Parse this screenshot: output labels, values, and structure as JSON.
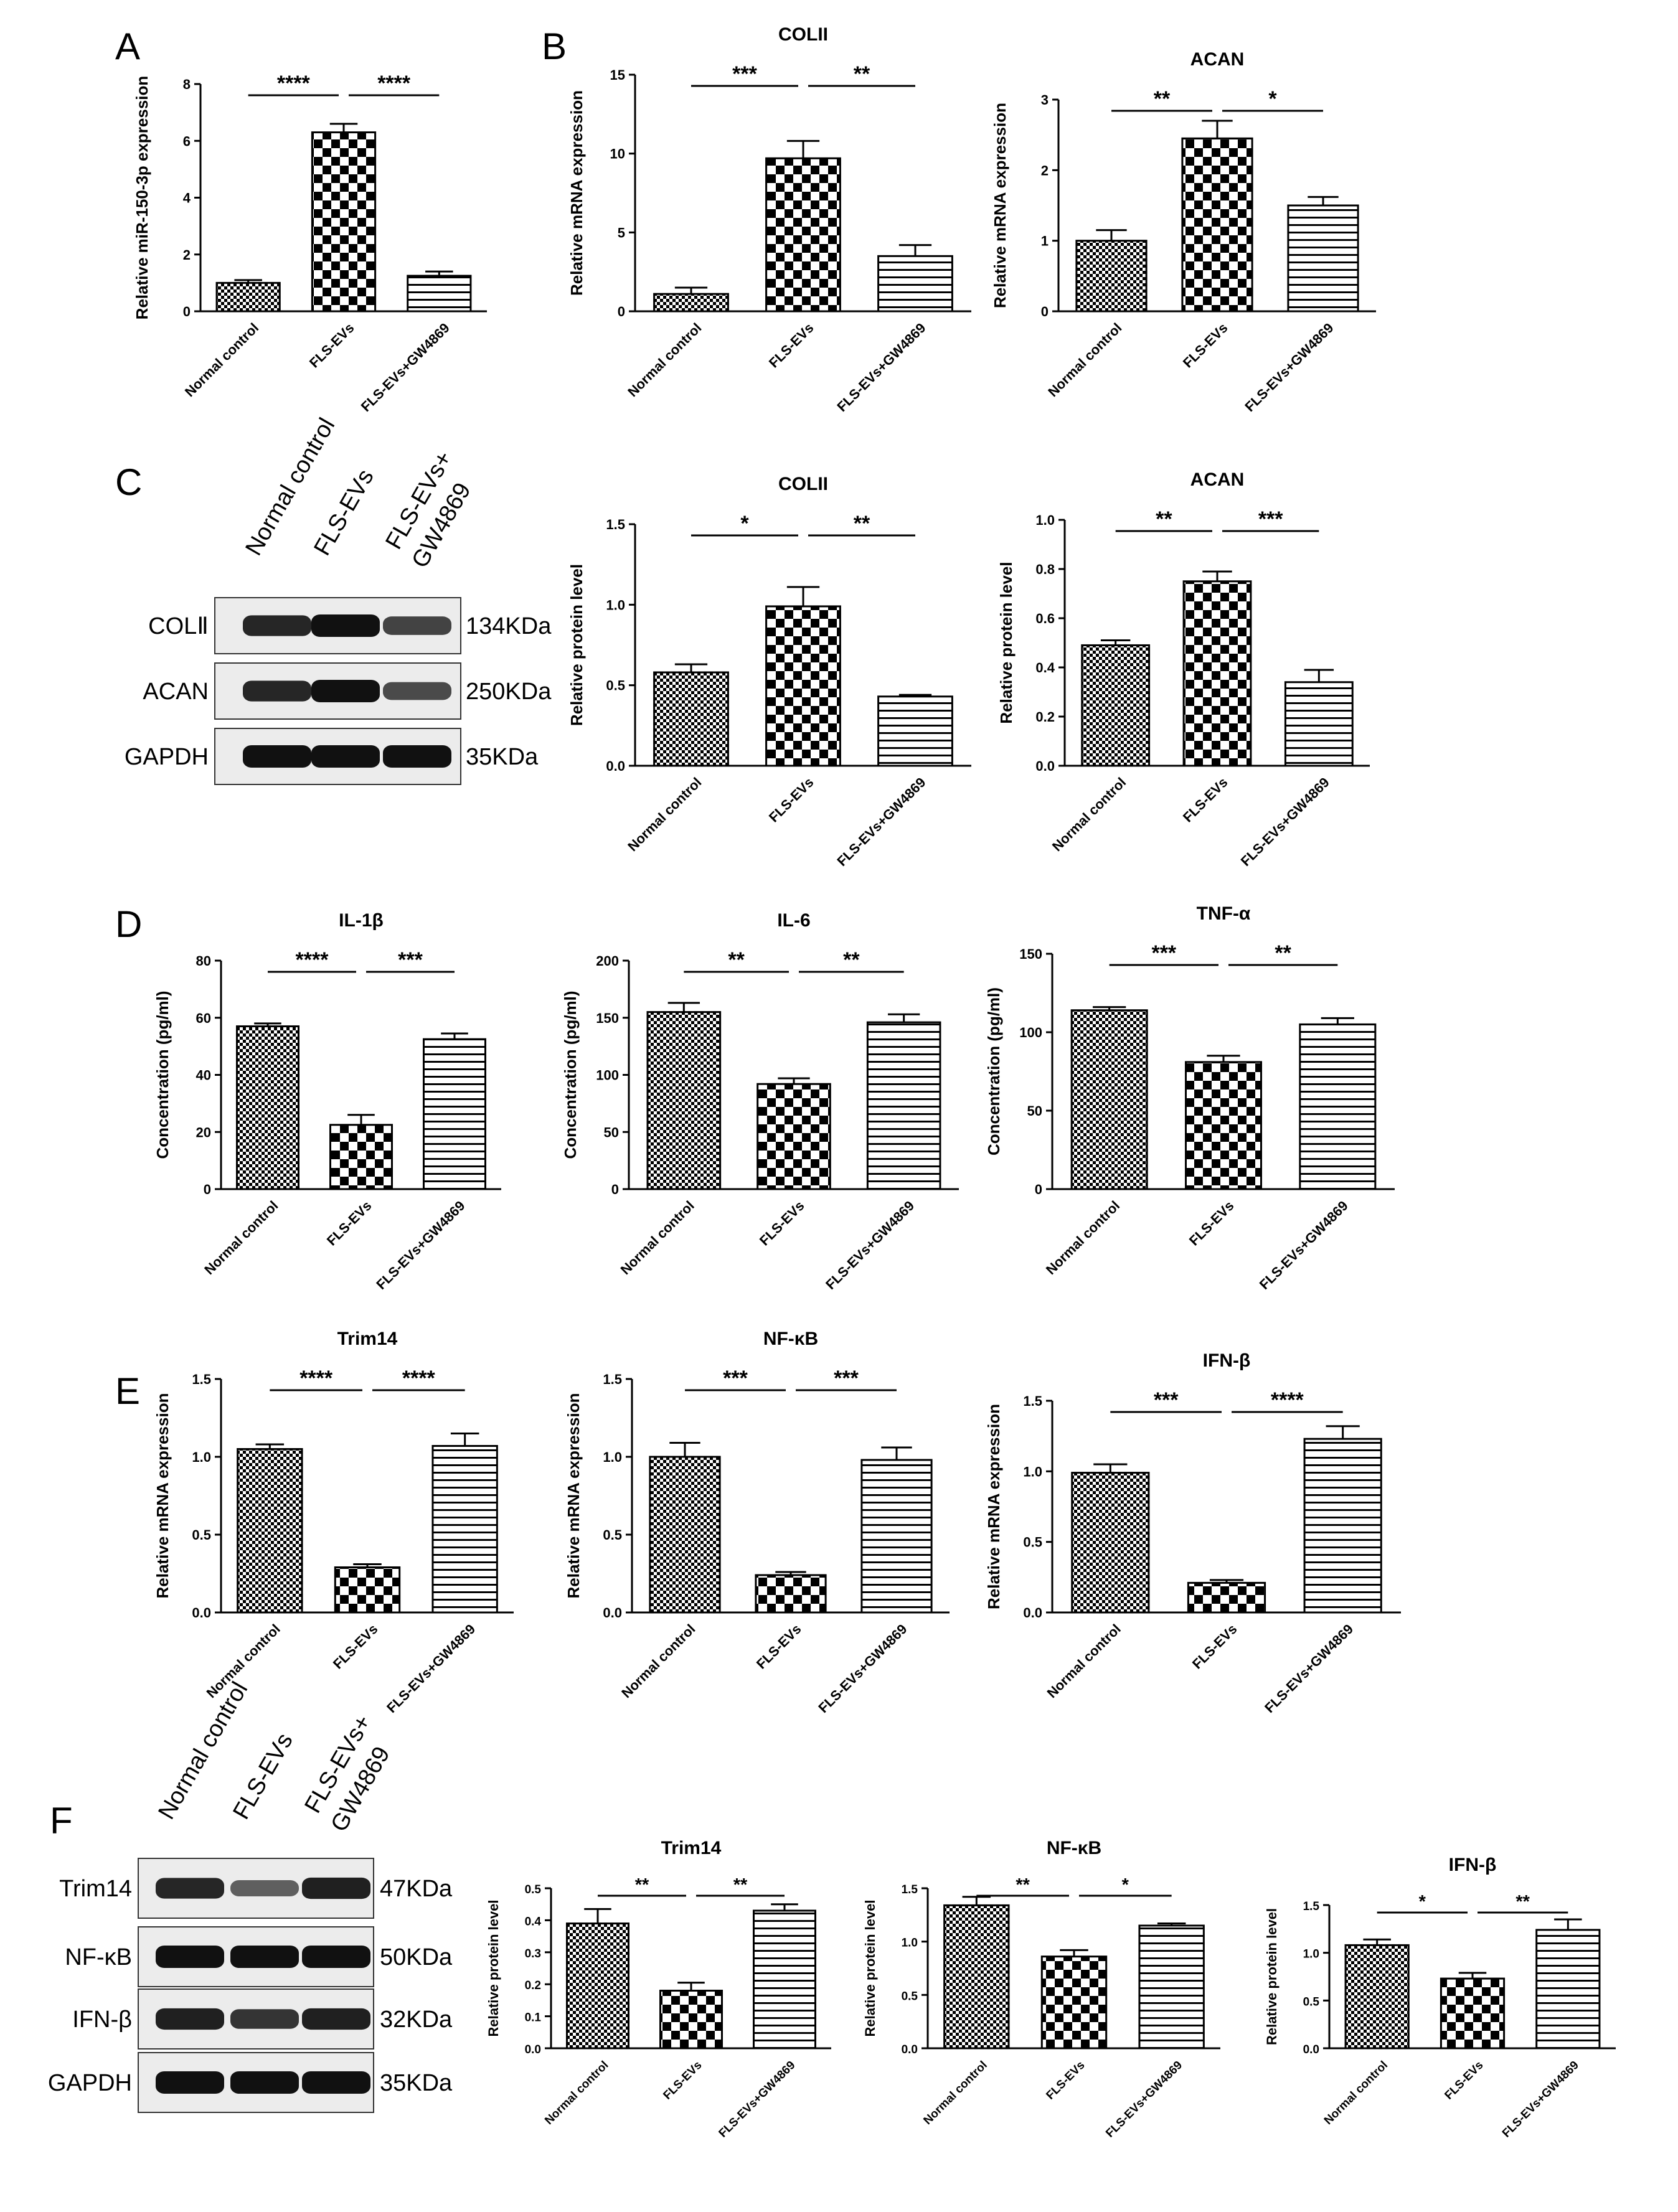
{
  "panel_letters": [
    "A",
    "B",
    "C",
    "D",
    "E",
    "F"
  ],
  "blots": [
    {
      "panel": "C",
      "headers": [
        "Normal control",
        "FLS-EVs",
        "FLS-EVs+",
        "GW4869"
      ],
      "rows": [
        {
          "label": "COLⅡ",
          "size": "134KDa",
          "intensity": [
            0.85,
            1.0,
            0.65
          ]
        },
        {
          "label": "ACAN",
          "size": "250KDa",
          "intensity": [
            0.85,
            1.0,
            0.6
          ]
        },
        {
          "label": "GAPDH",
          "size": "35KDa",
          "intensity": [
            1.0,
            1.0,
            1.0
          ]
        }
      ]
    },
    {
      "panel": "F",
      "headers": [
        "Normal control",
        "FLS-EVs",
        "FLS-EVs+",
        "GW4869"
      ],
      "rows": [
        {
          "label": "Trim14",
          "size": "47KDa",
          "intensity": [
            0.85,
            0.45,
            0.9
          ]
        },
        {
          "label": "NF-κB",
          "size": "50KDa",
          "intensity": [
            1.0,
            1.0,
            1.0
          ]
        },
        {
          "label": "IFN-β",
          "size": "32KDa",
          "intensity": [
            0.9,
            0.75,
            0.9
          ]
        },
        {
          "label": "GAPDH",
          "size": "35KDa",
          "intensity": [
            1.0,
            1.0,
            1.0
          ]
        }
      ]
    }
  ],
  "chart_data": [
    {
      "id": "A",
      "type": "bar",
      "title": "",
      "ylabel": "Relative miR-150-3p expression",
      "categories": [
        "Normal control",
        "FLS-EVs",
        "FLS-EVs+GW4869"
      ],
      "values": [
        1.0,
        6.3,
        1.25
      ],
      "errors": [
        0.1,
        0.3,
        0.15
      ],
      "ylim": [
        0,
        8
      ],
      "yticks": [
        "0",
        "2",
        "4",
        "6",
        "8"
      ],
      "significance": [
        "****",
        "****"
      ]
    },
    {
      "id": "B1",
      "type": "bar",
      "title": "COLII",
      "ylabel": "Relative mRNA expression",
      "categories": [
        "Normal control",
        "FLS-EVs",
        "FLS-EVs+GW4869"
      ],
      "values": [
        1.1,
        9.7,
        3.5
      ],
      "errors": [
        0.4,
        1.1,
        0.7
      ],
      "ylim": [
        0,
        15
      ],
      "yticks": [
        "0",
        "5",
        "10",
        "15"
      ],
      "significance": [
        "***",
        "**"
      ]
    },
    {
      "id": "B2",
      "type": "bar",
      "title": "ACAN",
      "ylabel": "Relative mRNA expression",
      "categories": [
        "Normal control",
        "FLS-EVs",
        "FLS-EVs+GW4869"
      ],
      "values": [
        1.0,
        2.45,
        1.5
      ],
      "errors": [
        0.15,
        0.25,
        0.12
      ],
      "ylim": [
        0,
        3
      ],
      "yticks": [
        "0",
        "1",
        "2",
        "3"
      ],
      "significance": [
        "**",
        "*"
      ]
    },
    {
      "id": "C1",
      "type": "bar",
      "title": "COLII",
      "ylabel": "Relative protein level",
      "categories": [
        "Normal control",
        "FLS-EVs",
        "FLS-EVs+GW4869"
      ],
      "values": [
        0.58,
        0.99,
        0.43
      ],
      "errors": [
        0.05,
        0.12,
        0.01
      ],
      "ylim": [
        0,
        1.5
      ],
      "yticks": [
        "0.0",
        "0.5",
        "1.0",
        "1.5"
      ],
      "significance": [
        "*",
        "**"
      ]
    },
    {
      "id": "C2",
      "type": "bar",
      "title": "ACAN",
      "ylabel": "Relative protein level",
      "categories": [
        "Normal control",
        "FLS-EVs",
        "FLS-EVs+GW4869"
      ],
      "values": [
        0.49,
        0.75,
        0.34
      ],
      "errors": [
        0.02,
        0.04,
        0.05
      ],
      "ylim": [
        0,
        1.0
      ],
      "yticks": [
        "0.0",
        "0.2",
        "0.4",
        "0.6",
        "0.8",
        "1.0"
      ],
      "significance": [
        "**",
        "***"
      ]
    },
    {
      "id": "D1",
      "type": "bar",
      "title": "IL-1β",
      "ylabel": "Concentration (pg/ml)",
      "categories": [
        "Normal control",
        "FLS-EVs",
        "FLS-EVs+GW4869"
      ],
      "values": [
        57,
        22.5,
        52.5
      ],
      "errors": [
        1,
        3.5,
        2
      ],
      "ylim": [
        0,
        80
      ],
      "yticks": [
        "0",
        "20",
        "40",
        "60",
        "80"
      ],
      "significance": [
        "****",
        "***"
      ]
    },
    {
      "id": "D2",
      "type": "bar",
      "title": "IL-6",
      "ylabel": "Concentration (pg/ml)",
      "categories": [
        "Normal control",
        "FLS-EVs",
        "FLS-EVs+GW4869"
      ],
      "values": [
        155,
        92,
        146
      ],
      "errors": [
        8,
        5,
        7
      ],
      "ylim": [
        0,
        200
      ],
      "yticks": [
        "0",
        "50",
        "100",
        "150",
        "200"
      ],
      "significance": [
        "**",
        "**"
      ]
    },
    {
      "id": "D3",
      "type": "bar",
      "title": "TNF-α",
      "ylabel": "Concentration (pg/ml)",
      "categories": [
        "Normal control",
        "FLS-EVs",
        "FLS-EVs+GW4869"
      ],
      "values": [
        114,
        81,
        105
      ],
      "errors": [
        2,
        4,
        4
      ],
      "ylim": [
        0,
        150
      ],
      "yticks": [
        "0",
        "50",
        "100",
        "150"
      ],
      "significance": [
        "***",
        "**"
      ]
    },
    {
      "id": "E1",
      "type": "bar",
      "title": "Trim14",
      "ylabel": "Relative mRNA expression",
      "categories": [
        "Normal control",
        "FLS-EVs",
        "FLS-EVs+GW4869"
      ],
      "values": [
        1.05,
        0.29,
        1.07
      ],
      "errors": [
        0.03,
        0.02,
        0.08
      ],
      "ylim": [
        0,
        1.5
      ],
      "yticks": [
        "0.0",
        "0.5",
        "1.0",
        "1.5"
      ],
      "significance": [
        "****",
        "****"
      ]
    },
    {
      "id": "E2",
      "type": "bar",
      "title": "NF-κB",
      "ylabel": "Relative mRNA expression",
      "categories": [
        "Normal control",
        "FLS-EVs",
        "FLS-EVs+GW4869"
      ],
      "values": [
        1.0,
        0.24,
        0.98
      ],
      "errors": [
        0.09,
        0.02,
        0.08
      ],
      "ylim": [
        0,
        1.5
      ],
      "yticks": [
        "0.0",
        "0.5",
        "1.0",
        "1.5"
      ],
      "significance": [
        "***",
        "***"
      ]
    },
    {
      "id": "E3",
      "type": "bar",
      "title": "IFN-β",
      "ylabel": "Relative mRNA expression",
      "categories": [
        "Normal control",
        "FLS-EVs",
        "FLS-EVs+GW4869"
      ],
      "values": [
        0.99,
        0.21,
        1.23
      ],
      "errors": [
        0.06,
        0.02,
        0.09
      ],
      "ylim": [
        0,
        1.5
      ],
      "yticks": [
        "0.0",
        "0.5",
        "1.0",
        "1.5"
      ],
      "significance": [
        "***",
        "****"
      ]
    },
    {
      "id": "F1",
      "type": "bar",
      "title": "Trim14",
      "ylabel": "Relative protein level",
      "categories": [
        "Normal control",
        "FLS-EVs",
        "FLS-EVs+GW4869"
      ],
      "values": [
        0.39,
        0.18,
        0.43
      ],
      "errors": [
        0.045,
        0.025,
        0.02
      ],
      "ylim": [
        0,
        0.5
      ],
      "yticks": [
        "0.0",
        "0.1",
        "0.2",
        "0.3",
        "0.4",
        "0.5"
      ],
      "significance": [
        "**",
        "**"
      ]
    },
    {
      "id": "F2",
      "type": "bar",
      "title": "NF-κB",
      "ylabel": "Relative protein level",
      "categories": [
        "Normal control",
        "FLS-EVs",
        "FLS-EVs+GW4869"
      ],
      "values": [
        1.34,
        0.86,
        1.15
      ],
      "errors": [
        0.08,
        0.06,
        0.02
      ],
      "ylim": [
        0,
        1.5
      ],
      "yticks": [
        "0.0",
        "0.5",
        "1.0",
        "1.5"
      ],
      "significance": [
        "**",
        "*"
      ]
    },
    {
      "id": "F3",
      "type": "bar",
      "title": "IFN-β",
      "ylabel": "Relative protein level",
      "categories": [
        "Normal control",
        "FLS-EVs",
        "FLS-EVs+GW4869"
      ],
      "values": [
        1.08,
        0.73,
        1.24
      ],
      "errors": [
        0.06,
        0.06,
        0.11
      ],
      "ylim": [
        0,
        1.5
      ],
      "yticks": [
        "0.0",
        "0.5",
        "1.0",
        "1.5"
      ],
      "significance": [
        "*",
        "**"
      ]
    }
  ]
}
